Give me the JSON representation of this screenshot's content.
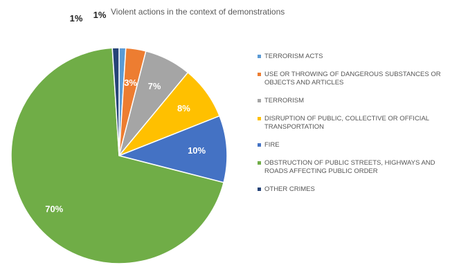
{
  "chart_data": {
    "type": "pie",
    "title": "Violent actions in the context of demonstrations",
    "slices": [
      {
        "label": "TERRORISM ACTS",
        "value": 1,
        "display": "1%",
        "color": "#5b9bd5"
      },
      {
        "label": "USE OR THROWING OF DANGEROUS SUBSTANCES OR OBJECTS AND ARTICLES",
        "value": 3,
        "display": "3%",
        "color": "#ed7d31"
      },
      {
        "label": "TERRORISM",
        "value": 7,
        "display": "7%",
        "color": "#a5a5a5"
      },
      {
        "label": "DISRUPTION OF PUBLIC, COLLECTIVE OR OFFICIAL TRANSPORTATION",
        "value": 8,
        "display": "8%",
        "color": "#ffc000"
      },
      {
        "label": "FIRE",
        "value": 10,
        "display": "10%",
        "color": "#4472c4"
      },
      {
        "label": "OBSTRUCTION OF PUBLIC STREETS, HIGHWAYS AND ROADS AFFECTING PUBLIC ORDER",
        "value": 70,
        "display": "70%",
        "color": "#70ad47"
      },
      {
        "label": "OTHER CRIMES",
        "value": 1,
        "display": "1%",
        "color": "#264478"
      }
    ],
    "legend_position": "right"
  }
}
